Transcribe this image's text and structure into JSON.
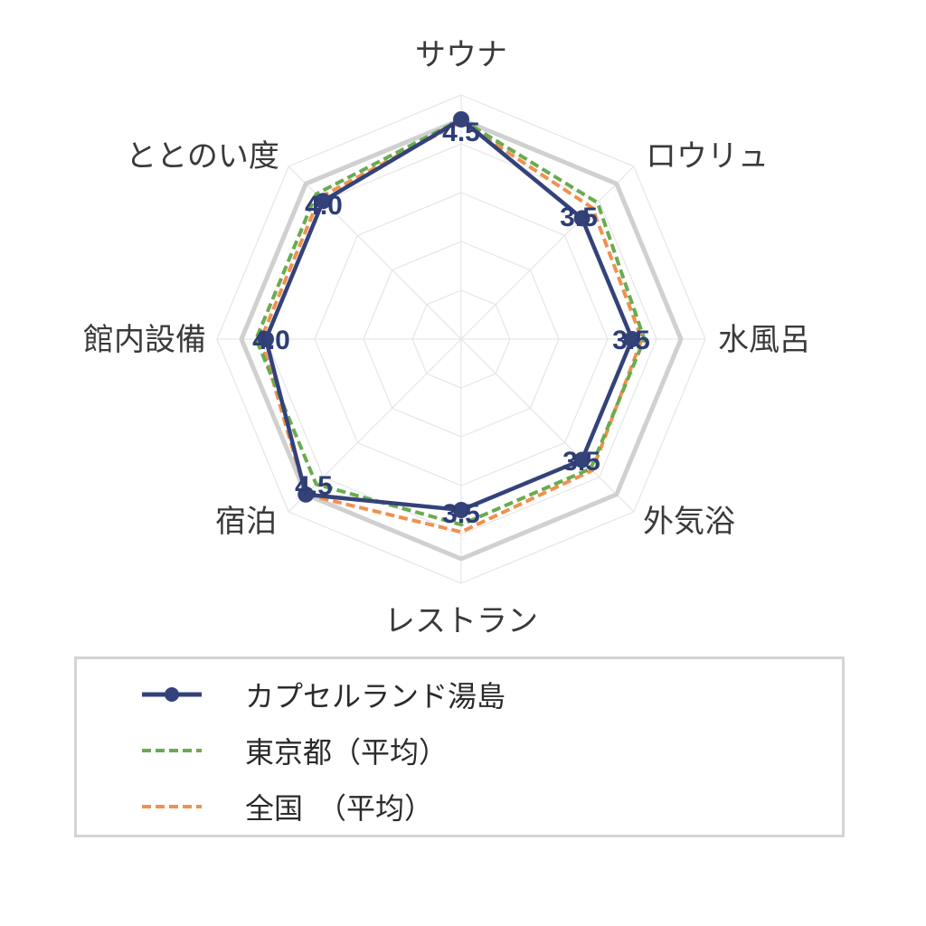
{
  "chart_data": {
    "type": "radar",
    "axes": [
      "サウナ",
      "ロウリュ",
      "水風呂",
      "外気浴",
      "レストラン",
      "宿泊",
      "館内設備",
      "ととのい度"
    ],
    "r_range": [
      0,
      5
    ],
    "grid": true,
    "legend_position": "bottom",
    "series": [
      {
        "name": "カプセルランド湯島",
        "values": [
          4.5,
          3.5,
          3.5,
          3.5,
          3.5,
          4.5,
          4.0,
          4.0
        ],
        "style": "solid-marker",
        "color": "#34427a"
      },
      {
        "name": "東京都（平均）",
        "values": [
          4.5,
          3.95,
          3.75,
          3.75,
          3.8,
          4.2,
          4.2,
          4.2
        ],
        "style": "dashed",
        "color": "#6aab4f"
      },
      {
        "name": "全国　（平均）",
        "values": [
          4.45,
          3.8,
          3.7,
          3.8,
          3.95,
          4.5,
          4.1,
          4.1
        ],
        "style": "dashed",
        "color": "#f0914f"
      }
    ],
    "value_labels": [
      "4.5",
      "3.5",
      "3.5",
      "3.5",
      "3.5",
      "4.5",
      "4.0",
      "4.0"
    ]
  },
  "legend": {
    "items": [
      {
        "label": "カプセルランド湯島"
      },
      {
        "label": "東京都（平均）"
      },
      {
        "label": "全国　（平均）"
      }
    ]
  }
}
